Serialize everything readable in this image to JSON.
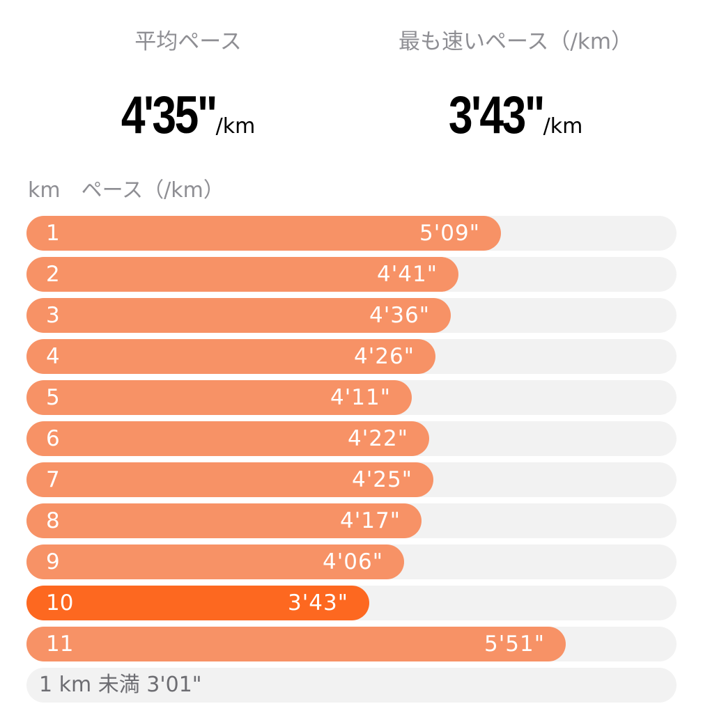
{
  "summary": {
    "avg": {
      "label": "平均ペース",
      "value": "4'35\"",
      "unit": "/km"
    },
    "fastest": {
      "label": "最も速いペース（/km）",
      "value": "3'43\"",
      "unit": "/km"
    }
  },
  "table": {
    "col_km": "km",
    "col_pace": "ペース（/km）",
    "rows": [
      {
        "km": "1",
        "pace": "5'09\"",
        "seconds": 309
      },
      {
        "km": "2",
        "pace": "4'41\"",
        "seconds": 281
      },
      {
        "km": "3",
        "pace": "4'36\"",
        "seconds": 276
      },
      {
        "km": "4",
        "pace": "4'26\"",
        "seconds": 266
      },
      {
        "km": "5",
        "pace": "4'11\"",
        "seconds": 251
      },
      {
        "km": "6",
        "pace": "4'22\"",
        "seconds": 262
      },
      {
        "km": "7",
        "pace": "4'25\"",
        "seconds": 265
      },
      {
        "km": "8",
        "pace": "4'17\"",
        "seconds": 257
      },
      {
        "km": "9",
        "pace": "4'06\"",
        "seconds": 246
      },
      {
        "km": "10",
        "pace": "3'43\"",
        "seconds": 223,
        "fastest": true
      },
      {
        "km": "11",
        "pace": "5'51\"",
        "seconds": 351
      }
    ],
    "footer": "1 km 未満 3'01\""
  },
  "colors": {
    "bar": "#f79266",
    "bar_fastest": "#fd6820",
    "track": "#f2f2f2",
    "label_gray": "#8e8e93"
  }
}
